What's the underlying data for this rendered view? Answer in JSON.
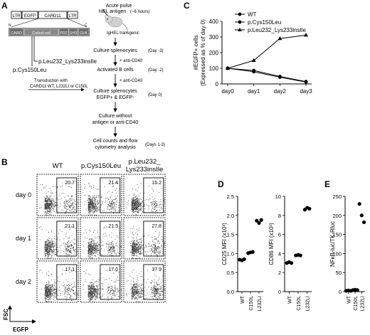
{
  "panels": {
    "A": {
      "letter": "A",
      "construct": {
        "ltr1": "LTR",
        "egfp": "EGFP",
        "card11": "CARD11",
        "ltr2": "LTR"
      },
      "domains": {
        "n": "N",
        "c": "C",
        "card": "CARD",
        "coiled": "Coiled-coil",
        "pdz": "PDZ",
        "sh3": "SH3",
        "guk": "GUK"
      },
      "mutations": [
        "p.Leu232_Lys233insIle",
        "p.Cys150Leu"
      ],
      "transduction": "Transduction with\nCARD11 WT, L232LI or C150L",
      "steps": {
        "pulse1": "Acute pulse",
        "pulse2": "HEL antigen",
        "pulse_time": "(~6 hours)",
        "mouse_label": "IgHEL transgenic",
        "culture": "Culture splenocytes",
        "culture_time": "(Day -3)",
        "anti1": "+ anti-CD40",
        "activated": "Activated B cells",
        "activated_time": "(Day -2)",
        "anti2": "+ anti-CD40",
        "culture2a": "Culture splenocytes",
        "culture2b": "EGFP+ & EGFP-",
        "culture2_time": "(Day 0)",
        "without1": "Culture without",
        "without2": "antigen or anti-CD40",
        "counts1": "Cell counts and flow",
        "counts2": "cytometry analysis",
        "counts_time": "(Days 1-3)"
      }
    },
    "B": {
      "letter": "B",
      "columns": [
        "WT",
        "p.Cys150Leu",
        "p.Leu232_\nLys233insIle"
      ],
      "rows": [
        "day 0",
        "day 1",
        "day 2"
      ],
      "values": [
        [
          "20.7",
          "21.4",
          "15.2"
        ],
        [
          "21.1",
          "21.5",
          "27.8"
        ],
        [
          "17.1",
          "17.0",
          "37.9"
        ]
      ],
      "xlabel": "EGFP",
      "ylabel": "FSC"
    },
    "D": {
      "letter": "D"
    },
    "E": {
      "letter": "E"
    }
  },
  "chart_data": [
    {
      "panel": "C",
      "type": "line",
      "ylabel": "#EGFP+ cells\n(Expressed as % of day 0)",
      "categories": [
        "day0",
        "day1",
        "day2",
        "day3"
      ],
      "ylim": [
        0,
        400
      ],
      "yticks": [
        0,
        100,
        200,
        300,
        400
      ],
      "series": [
        {
          "name": "WT",
          "marker": "circle",
          "values": [
            100,
            78,
            43,
            12
          ]
        },
        {
          "name": "p.Cys150Leu",
          "marker": "circle",
          "values": [
            100,
            86,
            48,
            15
          ]
        },
        {
          "name": "p.Leu232_Lys233insIle",
          "marker": "triangle",
          "values": [
            100,
            150,
            290,
            312
          ]
        }
      ]
    },
    {
      "panel": "D1",
      "type": "scatter",
      "ylabel": "CD25 MFI (x10³)",
      "categories": [
        "WT",
        "C150L",
        "L232LI"
      ],
      "ylim": [
        0,
        2.5
      ],
      "yticks": [
        0.0,
        0.5,
        1.0,
        1.5,
        2.0,
        2.5
      ],
      "points": [
        [
          0.84,
          0.82,
          0.85
        ],
        [
          1.01,
          1.03,
          1.04
        ],
        [
          1.86,
          1.8,
          1.88
        ]
      ]
    },
    {
      "panel": "D2",
      "type": "scatter",
      "ylabel": "CD86 MFI (x10³)",
      "categories": [
        "WT",
        "C150L",
        "L232LI"
      ],
      "ylim": [
        0,
        10
      ],
      "yticks": [
        0,
        2,
        4,
        6,
        8,
        10
      ],
      "points": [
        [
          3.0,
          3.1,
          3.0
        ],
        [
          3.8,
          3.85,
          3.8
        ],
        [
          8.6,
          8.8,
          8.7
        ]
      ]
    },
    {
      "panel": "E",
      "type": "scatter",
      "ylabel": "NFκB-luc/TK-Rluc",
      "categories": [
        "WT",
        "C150L",
        "L232LI"
      ],
      "ylim": [
        0,
        250
      ],
      "yticks": [
        0,
        50,
        100,
        150,
        200,
        250
      ],
      "points": [
        [
          2,
          3,
          2
        ],
        [
          4,
          5,
          4
        ],
        [
          230,
          200,
          182
        ]
      ]
    }
  ]
}
